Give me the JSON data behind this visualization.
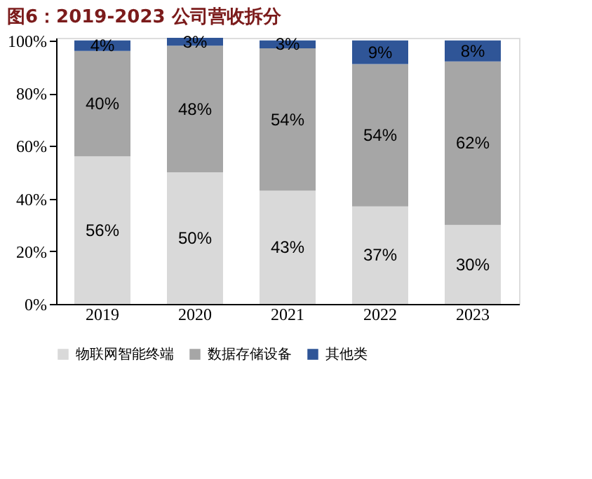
{
  "chart_data": {
    "type": "bar",
    "stacked": true,
    "title": "图6：2019-2023 公司营收拆分",
    "categories": [
      "2019",
      "2020",
      "2021",
      "2022",
      "2023"
    ],
    "series": [
      {
        "name": "物联网智能终端",
        "color": "#d9d9d9",
        "values": [
          56,
          50,
          43,
          37,
          30
        ],
        "value_labels": [
          "56%",
          "50%",
          "43%",
          "37%",
          "30%"
        ]
      },
      {
        "name": "数据存储设备",
        "color": "#a6a6a6",
        "values": [
          40,
          48,
          54,
          54,
          62
        ],
        "value_labels": [
          "40%",
          "48%",
          "54%",
          "54%",
          "62%"
        ]
      },
      {
        "name": "其他类",
        "color": "#2f5597",
        "values": [
          4,
          3,
          3,
          9,
          8
        ],
        "value_labels": [
          "4%",
          "3%",
          "3%",
          "9%",
          "8%"
        ]
      }
    ],
    "ylim": [
      0,
      101
    ],
    "yticks": [
      {
        "value": 0,
        "label": "0%"
      },
      {
        "value": 20,
        "label": "20%"
      },
      {
        "value": 40,
        "label": "40%"
      },
      {
        "value": 60,
        "label": "60%"
      },
      {
        "value": 80,
        "label": "80%"
      },
      {
        "value": 100,
        "label": "100%"
      }
    ],
    "grid": false,
    "legend": "bottom"
  }
}
